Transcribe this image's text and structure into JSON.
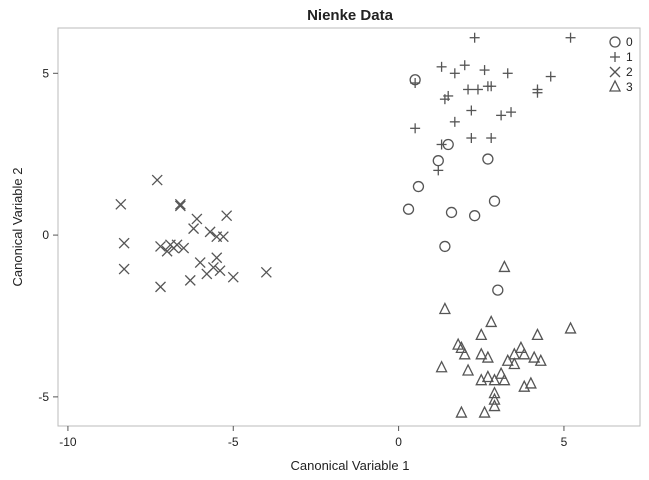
{
  "chart_data": {
    "type": "scatter",
    "title": "Nienke Data",
    "xlabel": "Canonical Variable 1",
    "ylabel": "Canonical Variable 2",
    "xlim": [
      -10.3,
      7.3
    ],
    "ylim": [
      -5.9,
      6.4
    ],
    "xticks": [
      -10,
      -5,
      0,
      5
    ],
    "xtick_labels": [
      "-10",
      "-5",
      "0",
      "5"
    ],
    "yticks": [
      -5,
      0,
      5
    ],
    "ytick_labels": [
      "-5",
      "0",
      "5"
    ],
    "grid": false,
    "legend_position": "top-right",
    "marker_color": "#555555",
    "series": [
      {
        "name": "0",
        "marker": "circle",
        "points": [
          [
            0.5,
            4.8
          ],
          [
            1.2,
            2.3
          ],
          [
            1.5,
            2.8
          ],
          [
            2.7,
            2.35
          ],
          [
            0.6,
            1.5
          ],
          [
            1.6,
            0.7
          ],
          [
            0.3,
            0.8
          ],
          [
            2.9,
            1.05
          ],
          [
            2.3,
            0.6
          ],
          [
            1.4,
            -0.35
          ],
          [
            3.0,
            -1.7
          ]
        ]
      },
      {
        "name": "1",
        "marker": "plus",
        "points": [
          [
            2.3,
            6.1
          ],
          [
            5.2,
            6.1
          ],
          [
            1.3,
            5.2
          ],
          [
            1.7,
            5.0
          ],
          [
            2.0,
            5.25
          ],
          [
            2.6,
            5.1
          ],
          [
            3.3,
            5.0
          ],
          [
            4.6,
            4.9
          ],
          [
            0.5,
            4.7
          ],
          [
            2.7,
            4.6
          ],
          [
            2.1,
            4.5
          ],
          [
            2.4,
            4.5
          ],
          [
            2.8,
            4.6
          ],
          [
            4.2,
            4.5
          ],
          [
            4.2,
            4.4
          ],
          [
            1.4,
            4.2
          ],
          [
            1.5,
            4.3
          ],
          [
            2.2,
            3.85
          ],
          [
            3.1,
            3.7
          ],
          [
            3.4,
            3.8
          ],
          [
            1.7,
            3.5
          ],
          [
            0.5,
            3.3
          ],
          [
            2.2,
            3.0
          ],
          [
            2.8,
            3.0
          ],
          [
            1.3,
            2.8
          ],
          [
            1.2,
            2.0
          ]
        ]
      },
      {
        "name": "2",
        "marker": "x",
        "points": [
          [
            -7.3,
            1.7
          ],
          [
            -8.4,
            0.95
          ],
          [
            -6.6,
            0.95
          ],
          [
            -6.6,
            0.9
          ],
          [
            -5.2,
            0.6
          ],
          [
            -6.1,
            0.5
          ],
          [
            -6.2,
            0.2
          ],
          [
            -5.7,
            0.1
          ],
          [
            -5.5,
            -0.05
          ],
          [
            -5.3,
            -0.05
          ],
          [
            -8.3,
            -0.25
          ],
          [
            -7.2,
            -0.35
          ],
          [
            -6.9,
            -0.3
          ],
          [
            -6.7,
            -0.3
          ],
          [
            -6.5,
            -0.4
          ],
          [
            -7.0,
            -0.5
          ],
          [
            -6.8,
            -0.4
          ],
          [
            -5.5,
            -0.7
          ],
          [
            -6.0,
            -0.85
          ],
          [
            -5.6,
            -1.0
          ],
          [
            -5.4,
            -1.1
          ],
          [
            -5.8,
            -1.2
          ],
          [
            -8.3,
            -1.05
          ],
          [
            -4.0,
            -1.15
          ],
          [
            -5.0,
            -1.3
          ],
          [
            -6.3,
            -1.4
          ],
          [
            -7.2,
            -1.6
          ]
        ]
      },
      {
        "name": "3",
        "marker": "triangle",
        "points": [
          [
            3.2,
            -1.0
          ],
          [
            1.4,
            -2.3
          ],
          [
            5.2,
            -2.9
          ],
          [
            2.8,
            -2.7
          ],
          [
            4.2,
            -3.1
          ],
          [
            2.5,
            -3.1
          ],
          [
            1.8,
            -3.4
          ],
          [
            1.9,
            -3.5
          ],
          [
            2.0,
            -3.7
          ],
          [
            3.7,
            -3.5
          ],
          [
            2.5,
            -3.7
          ],
          [
            3.5,
            -3.7
          ],
          [
            3.3,
            -3.9
          ],
          [
            3.8,
            -3.7
          ],
          [
            2.7,
            -3.8
          ],
          [
            4.1,
            -3.8
          ],
          [
            4.3,
            -3.9
          ],
          [
            3.5,
            -4.0
          ],
          [
            1.3,
            -4.1
          ],
          [
            2.1,
            -4.2
          ],
          [
            2.5,
            -4.5
          ],
          [
            2.7,
            -4.4
          ],
          [
            2.9,
            -4.5
          ],
          [
            3.2,
            -4.5
          ],
          [
            3.1,
            -4.3
          ],
          [
            3.8,
            -4.7
          ],
          [
            4.0,
            -4.6
          ],
          [
            2.9,
            -4.9
          ],
          [
            2.9,
            -5.1
          ],
          [
            2.9,
            -5.3
          ],
          [
            2.6,
            -5.5
          ],
          [
            1.9,
            -5.5
          ]
        ]
      }
    ]
  }
}
